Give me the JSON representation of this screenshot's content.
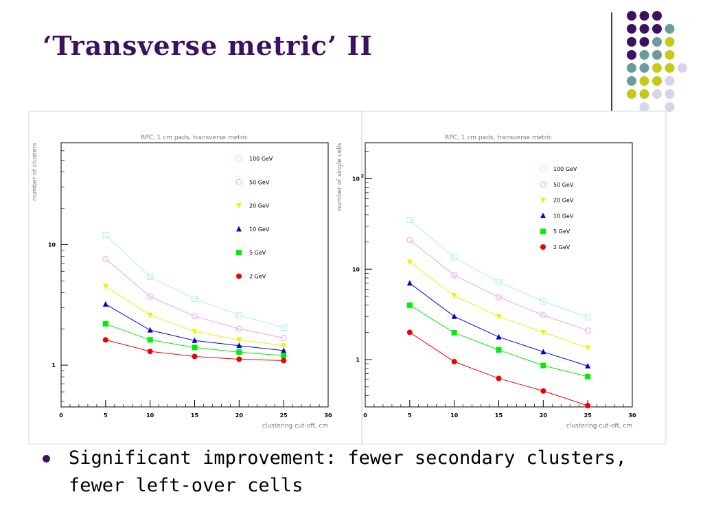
{
  "slide": {
    "title": "‘Transverse metric’ II",
    "bullet": "Significant improvement: fewer secondary clusters, fewer left-over cells"
  },
  "decor": {
    "dot_grid_rows": [
      [
        "purple",
        "purple",
        "purple",
        "none",
        "none"
      ],
      [
        "purple",
        "purple",
        "purple",
        "teal",
        "none"
      ],
      [
        "purple",
        "purple",
        "teal",
        "olive",
        "none"
      ],
      [
        "purple",
        "teal",
        "teal",
        "olive",
        "none"
      ],
      [
        "teal",
        "teal",
        "olive",
        "olive",
        "lavender"
      ],
      [
        "teal",
        "olive",
        "olive",
        "lavender",
        "none"
      ],
      [
        "olive",
        "olive",
        "lavender",
        "lavender",
        "none"
      ],
      [
        "none",
        "lavender",
        "none",
        "lavender",
        "none"
      ]
    ],
    "palette": {
      "purple": "#3d1161",
      "teal": "#6b9b9b",
      "olive": "#c8c81a",
      "lavender": "#d6d6e8"
    }
  },
  "chart_data": [
    {
      "type": "line",
      "title": "RPC, 1 cm pads, transverse metric",
      "xlabel": "clustering cut-off, cm",
      "ylabel": "number of clusters",
      "xlim": [
        0,
        30
      ],
      "ylim": [
        0.45,
        70
      ],
      "yscale": "log",
      "x": [
        5,
        10,
        15,
        20,
        25
      ],
      "xticks": [
        "0",
        "5",
        "10",
        "15",
        "20",
        "25",
        "30"
      ],
      "yticks": [
        {
          "value": 1,
          "label": "1"
        },
        {
          "value": 10,
          "label": "10"
        }
      ],
      "legend_position": "top-right, inside plot",
      "series": [
        {
          "name": "100 GeV",
          "color": "#a8f0f0",
          "marker": "open-square",
          "values": [
            12.0,
            5.4,
            3.55,
            2.6,
            2.05
          ]
        },
        {
          "name": "50 GeV",
          "color": "#f0a0f0",
          "marker": "open-circle",
          "values": [
            7.6,
            3.7,
            2.55,
            2.0,
            1.68
          ]
        },
        {
          "name": "20 GeV",
          "color": "#f0f000",
          "marker": "triangle-down",
          "values": [
            4.5,
            2.6,
            1.9,
            1.62,
            1.45
          ]
        },
        {
          "name": "10 GeV",
          "color": "#0000dd",
          "marker": "triangle-up",
          "values": [
            3.2,
            1.95,
            1.6,
            1.45,
            1.32
          ]
        },
        {
          "name": "5 GeV",
          "color": "#00ee00",
          "marker": "square",
          "values": [
            2.2,
            1.62,
            1.4,
            1.28,
            1.2
          ]
        },
        {
          "name": "2 GeV",
          "color": "#ee0000",
          "marker": "circle",
          "values": [
            1.62,
            1.3,
            1.18,
            1.12,
            1.09
          ]
        }
      ]
    },
    {
      "type": "line",
      "title": "RPC, 1 cm pads, transverse metric",
      "xlabel": "clustering cut-off, cm",
      "ylabel": "number of single cells",
      "xlim": [
        0,
        30
      ],
      "ylim": [
        0.3,
        250
      ],
      "yscale": "log",
      "x": [
        5,
        10,
        15,
        20,
        25
      ],
      "xticks": [
        "0",
        "5",
        "10",
        "15",
        "20",
        "25",
        "30"
      ],
      "yticks": [
        {
          "value": 1,
          "label": "1"
        },
        {
          "value": 10,
          "label": "10"
        },
        {
          "value": 100,
          "label": "10",
          "sup": "2"
        }
      ],
      "legend_position": "top-right, inside plot",
      "series": [
        {
          "name": "100 GeV",
          "color": "#a8f0f0",
          "marker": "open-square",
          "values": [
            35,
            13.5,
            7.2,
            4.4,
            2.95
          ]
        },
        {
          "name": "50 GeV",
          "color": "#f0a0f0",
          "marker": "open-circle",
          "values": [
            21,
            8.6,
            4.9,
            3.1,
            2.1
          ]
        },
        {
          "name": "20 GeV",
          "color": "#f0f000",
          "marker": "triangle-down",
          "values": [
            12,
            5.1,
            3.0,
            2.0,
            1.35
          ]
        },
        {
          "name": "10 GeV",
          "color": "#0000dd",
          "marker": "triangle-up",
          "values": [
            7.0,
            3.0,
            1.78,
            1.22,
            0.85
          ]
        },
        {
          "name": "5 GeV",
          "color": "#00ee00",
          "marker": "square",
          "values": [
            4.0,
            1.98,
            1.28,
            0.86,
            0.65
          ]
        },
        {
          "name": "2 GeV",
          "color": "#ee0000",
          "marker": "circle",
          "values": [
            2.0,
            0.95,
            0.62,
            0.45,
            0.31
          ]
        }
      ]
    }
  ]
}
